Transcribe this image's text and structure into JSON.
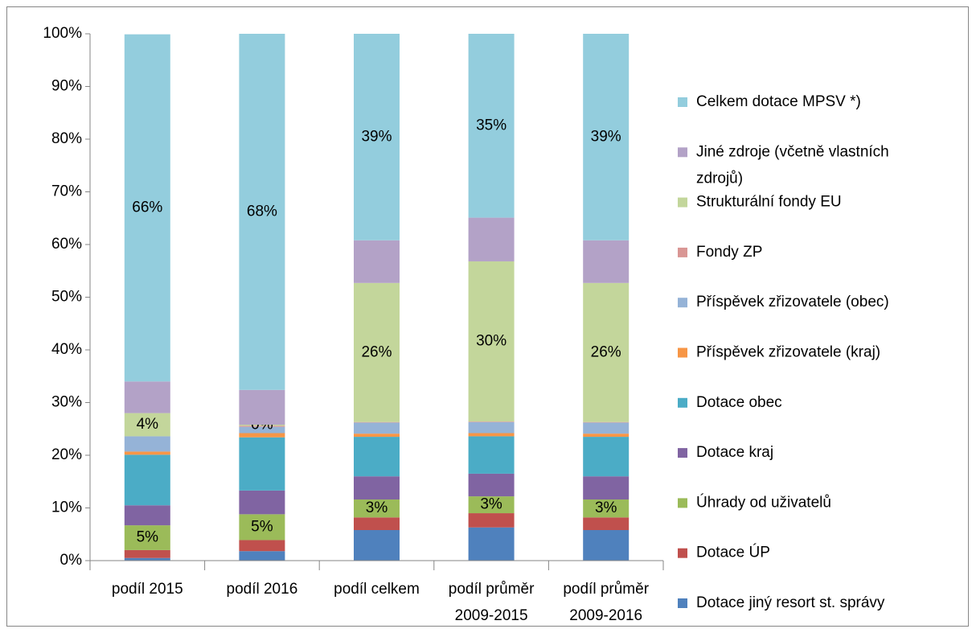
{
  "chart_data": {
    "type": "stacked_bar",
    "categories": [
      "podíl 2015",
      "podíl 2016",
      "podíl celkem",
      "podíl průměr 2009-2015",
      "podíl průměr 2009-2016"
    ],
    "series": [
      {
        "name": "Dotace jiný resort st. správy",
        "color": "#4f81bd",
        "values": [
          0.5,
          1.8,
          5.8,
          6.3,
          5.8
        ]
      },
      {
        "name": "Dotace ÚP",
        "color": "#c0504d",
        "values": [
          1.5,
          2.1,
          2.4,
          2.7,
          2.4
        ]
      },
      {
        "name": "Úhrady od uživatelů",
        "color": "#9bbb59",
        "values": [
          4.7,
          4.9,
          3.4,
          3.2,
          3.4
        ],
        "value_labels": [
          "5%",
          "5%",
          "3%",
          "3%",
          "3%"
        ]
      },
      {
        "name": "Dotace kraj",
        "color": "#8064a2",
        "values": [
          3.8,
          4.5,
          4.4,
          4.3,
          4.4
        ]
      },
      {
        "name": "Dotace obec",
        "color": "#4bacc6",
        "values": [
          9.6,
          10.1,
          7.5,
          7.1,
          7.5
        ]
      },
      {
        "name": "Příspěvek zřizovatele (kraj)",
        "color": "#f79646",
        "values": [
          0.6,
          0.8,
          0.6,
          0.6,
          0.6
        ]
      },
      {
        "name": "Příspěvek zřizovatele (obec)",
        "color": "#95b3d7",
        "values": [
          2.9,
          1.2,
          2.1,
          2.1,
          2.1
        ]
      },
      {
        "name": "Fondy ZP",
        "color": "#d99694",
        "values": [
          0,
          0.2,
          0.1,
          0.1,
          0.1
        ]
      },
      {
        "name": "Strukturální fondy EU",
        "color": "#c3d69b",
        "values": [
          4.4,
          0.2,
          26.4,
          30.4,
          26.4
        ],
        "value_labels": [
          "4%",
          "0%",
          "26%",
          "30%",
          "26%"
        ]
      },
      {
        "name": "Jiné zdroje (včetně vlastních zdrojů)",
        "color": "#b3a2c7",
        "values": [
          6.0,
          6.6,
          8.1,
          8.3,
          8.1
        ]
      },
      {
        "name": "Celkem dotace MPSV *)",
        "color": "#93cddd",
        "values": [
          65.9,
          67.6,
          39.2,
          34.9,
          39.2
        ],
        "value_labels": [
          "66%",
          "68%",
          "39%",
          "35%",
          "39%"
        ]
      }
    ],
    "ylim": [
      0,
      100
    ],
    "yticks": [
      {
        "value": 0,
        "label": "0%"
      },
      {
        "value": 10,
        "label": "10%"
      },
      {
        "value": 20,
        "label": "20%"
      },
      {
        "value": 30,
        "label": "30%"
      },
      {
        "value": 40,
        "label": "40%"
      },
      {
        "value": 50,
        "label": "50%"
      },
      {
        "value": 60,
        "label": "60%"
      },
      {
        "value": 70,
        "label": "70%"
      },
      {
        "value": 80,
        "label": "80%"
      },
      {
        "value": 90,
        "label": "90%"
      },
      {
        "value": 100,
        "label": "100%"
      }
    ],
    "legend": "right"
  }
}
